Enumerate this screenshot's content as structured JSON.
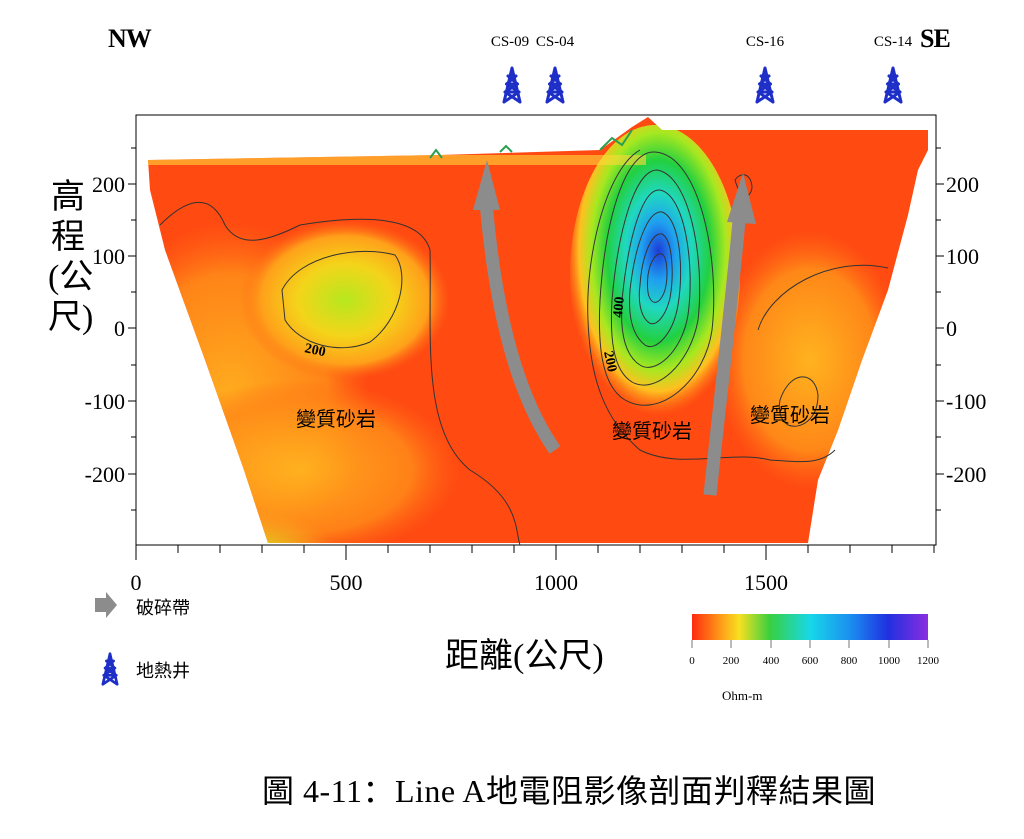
{
  "header": {
    "left_direction": "NW",
    "right_direction": "SE"
  },
  "wells": [
    {
      "label": "CS-09",
      "x": 880
    },
    {
      "label": "CS-04",
      "x": 1000
    },
    {
      "label": "CS-16",
      "x": 1500
    },
    {
      "label": "CS-14",
      "x": 1800
    }
  ],
  "axes": {
    "ylabel": "高程(公尺)",
    "xlabel": "距離(公尺)",
    "xticks": [
      "0",
      "500",
      "1000",
      "1500"
    ],
    "yticks_left": [
      "200",
      "100",
      "0",
      "-100",
      "-200"
    ],
    "yticks_right": [
      "200",
      "100",
      "0",
      "-100",
      "-200"
    ]
  },
  "section": {
    "rock_labels": [
      "變質砂岩",
      "變質砂岩",
      "變質砂岩"
    ],
    "contour_labels": [
      "200",
      "400",
      "200"
    ]
  },
  "legend": {
    "fracture_zone": "破碎帶",
    "geothermal_well": "地熱井"
  },
  "colorbar": {
    "ticks": [
      "0",
      "200",
      "400",
      "600",
      "800",
      "1000",
      "1200"
    ],
    "unit": "Ohm-m"
  },
  "caption": "圖 4-11：Line A地電阻影像剖面判釋結果圖",
  "colors": {
    "well": "#1e2fc8",
    "arrow": "#8c8c8c",
    "contour": "#333333"
  }
}
